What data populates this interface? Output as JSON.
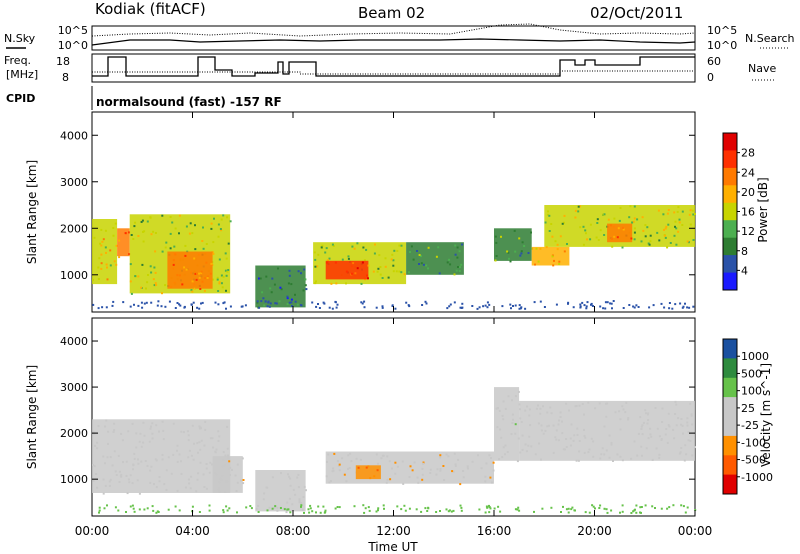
{
  "header": {
    "station": "Kodiak (fitACF)",
    "beam": "Beam 02",
    "date": "02/Oct/2011"
  },
  "summary": {
    "nsky_label": "N.Sky",
    "nsearch_label": "N.Search",
    "freq_label_1": "Freq.",
    "freq_label_2": "[MHz]",
    "nave_label": "Nave",
    "cpid_label": "CPID",
    "cpid_text": "normalsound (fast) -157 RF",
    "noise_ticks_left": [
      "10^5",
      "10^0"
    ],
    "noise_ticks_right": [
      "10^5",
      "10^0"
    ],
    "freq_ticks": [
      "18",
      "8"
    ],
    "nave_ticks": [
      "60",
      "0"
    ]
  },
  "xaxis": {
    "label": "Time UT",
    "ticks": [
      "00:00",
      "04:00",
      "08:00",
      "12:00",
      "16:00",
      "20:00",
      "00:00"
    ]
  },
  "colors": {
    "power": [
      "#1a1aff",
      "#2a52a8",
      "#2e7d32",
      "#4caf50",
      "#c8d400",
      "#ffb000",
      "#ff7a00",
      "#ff3000",
      "#e00000"
    ],
    "velocity": [
      "#e00000",
      "#ff5a00",
      "#ff9000",
      "#c8c8c8",
      "#c8c8c8",
      "#66c24a",
      "#2e8b3e",
      "#1a50a0"
    ]
  },
  "chart_data": [
    {
      "type": "heatmap",
      "title": "",
      "xlabel": "Time UT",
      "ylabel": "Slant Range [km]",
      "xlim": [
        0,
        24
      ],
      "ylim": [
        200,
        4500
      ],
      "yticks": [
        "1000",
        "2000",
        "3000",
        "4000"
      ],
      "colorbar": {
        "label": "Power [dB]",
        "ticks": [
          "28",
          "24",
          "20",
          "16",
          "12",
          "8",
          "4"
        ],
        "range": [
          0,
          30
        ]
      },
      "regions": [
        {
          "t": [
            0.0,
            1.0
          ],
          "r": [
            800,
            2200
          ],
          "v": 16
        },
        {
          "t": [
            1.0,
            1.5
          ],
          "r": [
            1400,
            2000
          ],
          "v": 22
        },
        {
          "t": [
            1.5,
            5.5
          ],
          "r": [
            600,
            2300
          ],
          "v": 14
        },
        {
          "t": [
            3.0,
            4.8
          ],
          "r": [
            700,
            1500
          ],
          "v": 22
        },
        {
          "t": [
            6.5,
            8.5
          ],
          "r": [
            300,
            1200
          ],
          "v": 8
        },
        {
          "t": [
            8.8,
            12.5
          ],
          "r": [
            800,
            1700
          ],
          "v": 14
        },
        {
          "t": [
            9.3,
            11.0
          ],
          "r": [
            900,
            1300
          ],
          "v": 24
        },
        {
          "t": [
            12.5,
            14.8
          ],
          "r": [
            1000,
            1700
          ],
          "v": 10
        },
        {
          "t": [
            16.0,
            17.5
          ],
          "r": [
            1300,
            2000
          ],
          "v": 10
        },
        {
          "t": [
            17.5,
            19.0
          ],
          "r": [
            1200,
            1600
          ],
          "v": 18
        },
        {
          "t": [
            18.0,
            24.0
          ],
          "r": [
            1600,
            2500
          ],
          "v": 14
        },
        {
          "t": [
            20.5,
            21.5
          ],
          "r": [
            1700,
            2100
          ],
          "v": 22
        }
      ]
    },
    {
      "type": "heatmap",
      "title": "",
      "xlabel": "Time UT",
      "ylabel": "Slant Range [km]",
      "xlim": [
        0,
        24
      ],
      "ylim": [
        200,
        4500
      ],
      "yticks": [
        "1000",
        "2000",
        "3000",
        "4000"
      ],
      "colorbar": {
        "label": "Velocity [m s^-1]",
        "ticks": [
          "1000",
          "500",
          "100",
          "25",
          "-25",
          "-100",
          "-500",
          "-1000"
        ],
        "range": [
          -1000,
          1000
        ]
      },
      "regions": [
        {
          "t": [
            0.0,
            5.5
          ],
          "r": [
            700,
            2300
          ],
          "v": 0
        },
        {
          "t": [
            4.8,
            6.0
          ],
          "r": [
            700,
            1500
          ],
          "v": -150
        },
        {
          "t": [
            6.5,
            8.5
          ],
          "r": [
            300,
            1200
          ],
          "v": 50
        },
        {
          "t": [
            9.3,
            16.0
          ],
          "r": [
            900,
            1600
          ],
          "v": -150
        },
        {
          "t": [
            10.5,
            11.5
          ],
          "r": [
            1000,
            1300
          ],
          "v": -500
        },
        {
          "t": [
            16.0,
            17.0
          ],
          "r": [
            1400,
            3000
          ],
          "v": 120
        },
        {
          "t": [
            17.0,
            24.0
          ],
          "r": [
            1400,
            2700
          ],
          "v": 0
        }
      ]
    }
  ]
}
